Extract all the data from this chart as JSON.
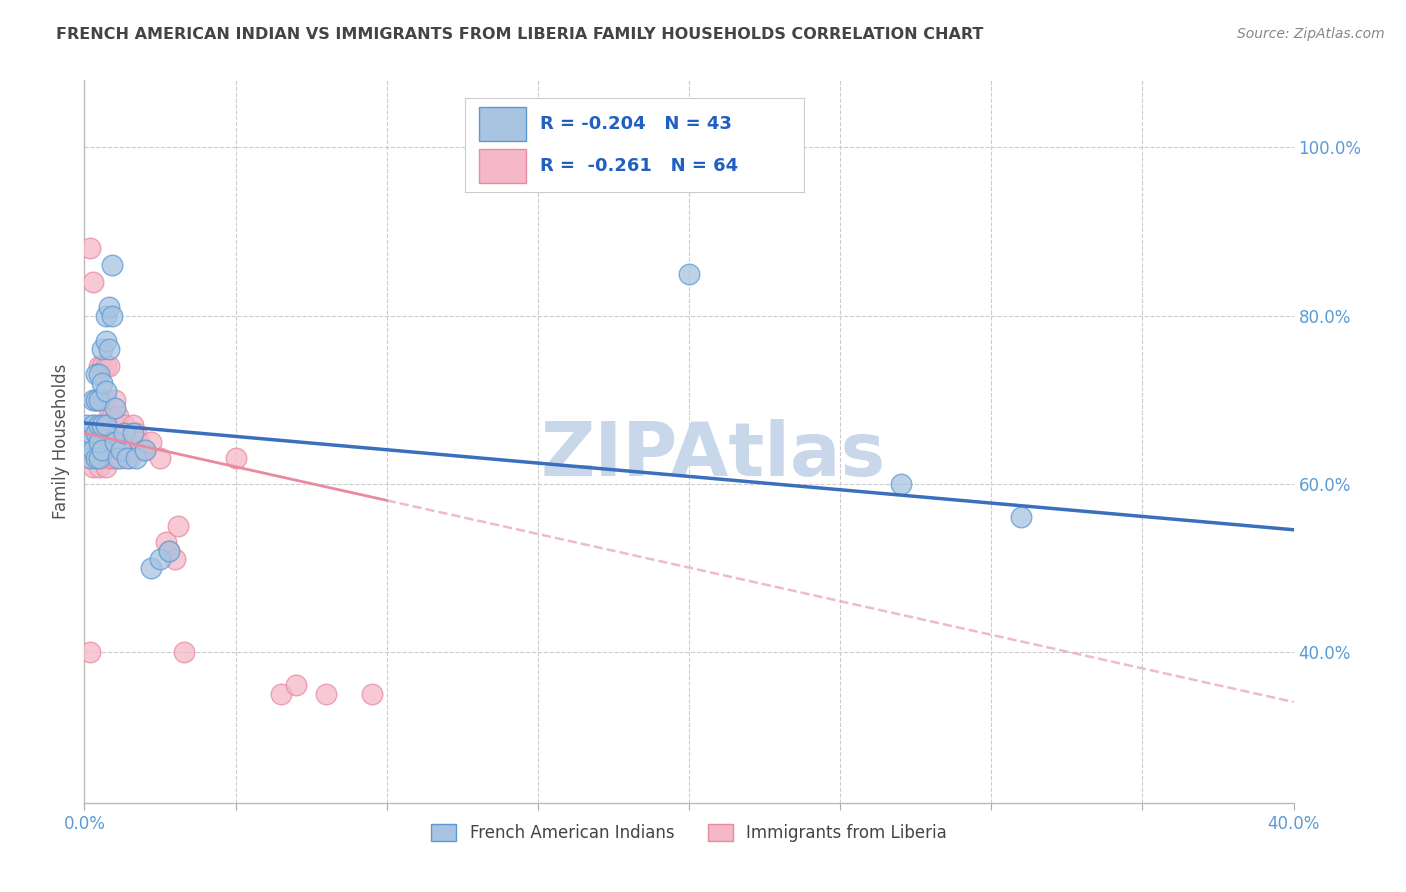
{
  "title": "FRENCH AMERICAN INDIAN VS IMMIGRANTS FROM LIBERIA FAMILY HOUSEHOLDS CORRELATION CHART",
  "source": "Source: ZipAtlas.com",
  "ylabel": "Family Households",
  "legend_blue_r": "-0.204",
  "legend_blue_n": "43",
  "legend_pink_r": "-0.261",
  "legend_pink_n": "64",
  "blue_color": "#a8c4e0",
  "blue_edge_color": "#5b9bd5",
  "blue_line_color": "#3a6fbd",
  "pink_color": "#f4b8c8",
  "pink_edge_color": "#e88aa0",
  "pink_line_color": "#e8a0b0",
  "watermark": "ZIPAtlas",
  "watermark_color": "#c8d8ea",
  "title_color": "#444444",
  "axis_label_color": "#5b9bd5",
  "grid_color": "#cccccc",
  "xlim": [
    0.0,
    0.4
  ],
  "ylim": [
    0.22,
    1.08
  ],
  "blue_scatter_x": [
    0.001,
    0.001,
    0.002,
    0.002,
    0.003,
    0.003,
    0.003,
    0.004,
    0.004,
    0.004,
    0.004,
    0.005,
    0.005,
    0.005,
    0.005,
    0.005,
    0.006,
    0.006,
    0.006,
    0.006,
    0.007,
    0.007,
    0.007,
    0.007,
    0.008,
    0.008,
    0.009,
    0.009,
    0.01,
    0.01,
    0.011,
    0.012,
    0.013,
    0.014,
    0.016,
    0.017,
    0.02,
    0.022,
    0.025,
    0.028,
    0.2,
    0.27,
    0.31
  ],
  "blue_scatter_y": [
    0.65,
    0.67,
    0.63,
    0.66,
    0.64,
    0.67,
    0.7,
    0.63,
    0.66,
    0.7,
    0.73,
    0.63,
    0.65,
    0.67,
    0.7,
    0.73,
    0.64,
    0.67,
    0.72,
    0.76,
    0.67,
    0.71,
    0.77,
    0.8,
    0.76,
    0.81,
    0.8,
    0.86,
    0.65,
    0.69,
    0.63,
    0.64,
    0.66,
    0.63,
    0.66,
    0.63,
    0.64,
    0.5,
    0.51,
    0.52,
    0.85,
    0.6,
    0.56
  ],
  "pink_scatter_x": [
    0.001,
    0.001,
    0.002,
    0.002,
    0.002,
    0.003,
    0.003,
    0.003,
    0.003,
    0.004,
    0.004,
    0.004,
    0.005,
    0.005,
    0.005,
    0.005,
    0.005,
    0.006,
    0.006,
    0.006,
    0.006,
    0.006,
    0.007,
    0.007,
    0.007,
    0.007,
    0.007,
    0.008,
    0.008,
    0.008,
    0.008,
    0.009,
    0.009,
    0.009,
    0.01,
    0.01,
    0.01,
    0.01,
    0.011,
    0.011,
    0.012,
    0.012,
    0.013,
    0.013,
    0.014,
    0.015,
    0.016,
    0.016,
    0.017,
    0.018,
    0.019,
    0.02,
    0.022,
    0.025,
    0.027,
    0.028,
    0.03,
    0.031,
    0.033,
    0.05,
    0.065,
    0.07,
    0.08,
    0.095
  ],
  "pink_scatter_y": [
    0.63,
    0.66,
    0.4,
    0.64,
    0.88,
    0.62,
    0.65,
    0.67,
    0.84,
    0.63,
    0.66,
    0.7,
    0.62,
    0.65,
    0.67,
    0.7,
    0.74,
    0.63,
    0.65,
    0.67,
    0.7,
    0.74,
    0.62,
    0.64,
    0.67,
    0.7,
    0.74,
    0.63,
    0.65,
    0.68,
    0.74,
    0.63,
    0.65,
    0.68,
    0.63,
    0.65,
    0.67,
    0.7,
    0.64,
    0.68,
    0.63,
    0.65,
    0.64,
    0.67,
    0.66,
    0.63,
    0.65,
    0.67,
    0.66,
    0.65,
    0.64,
    0.64,
    0.65,
    0.63,
    0.53,
    0.52,
    0.51,
    0.55,
    0.4,
    0.63,
    0.35,
    0.36,
    0.35,
    0.35
  ],
  "blue_trend_x0": 0.0,
  "blue_trend_y0": 0.672,
  "blue_trend_x1": 0.4,
  "blue_trend_y1": 0.545,
  "pink_trend_x0": 0.0,
  "pink_trend_y0": 0.66,
  "pink_trend_x1": 0.4,
  "pink_trend_y1": 0.34
}
